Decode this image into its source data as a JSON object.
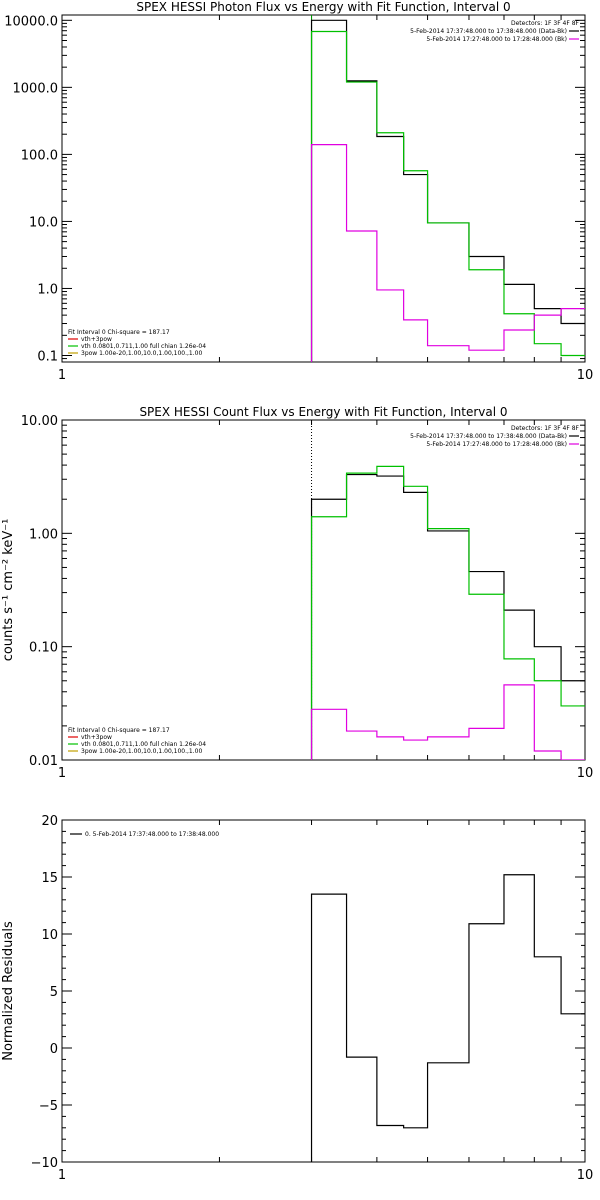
{
  "chart_data": [
    {
      "id": "photon",
      "type": "line",
      "title": "SPEX HESSI Photon Flux vs Energy with Fit Function, Interval 0",
      "ylabel": "",
      "xlabel": "",
      "xscale": "log",
      "yscale": "log",
      "xlim": [
        1,
        10
      ],
      "ylim": [
        0.08,
        12000
      ],
      "x_ticks": [
        {
          "v": 1,
          "label": "1"
        },
        {
          "v": 10,
          "label": "10"
        }
      ],
      "y_ticks": [
        {
          "v": 0.1,
          "label": "0.1"
        },
        {
          "v": 1,
          "label": "1.0"
        },
        {
          "v": 10,
          "label": "10.0"
        },
        {
          "v": 100,
          "label": "100.0"
        },
        {
          "v": 1000,
          "label": "1000.0"
        },
        {
          "v": 10000,
          "label": "10000.0"
        }
      ],
      "vline": {
        "x": 3.0,
        "color": "#00a000"
      },
      "edges": [
        3.0,
        3.5,
        4.0,
        4.5,
        5.0,
        6.0,
        7.0,
        8.0,
        9.0,
        10.0
      ],
      "series": [
        {
          "color": "#000000",
          "values": [
            10000,
            1250,
            185,
            50,
            9.5,
            3.0,
            1.15,
            0.5,
            0.3
          ]
        },
        {
          "color": "#00c000",
          "values": [
            6800,
            1200,
            210,
            57,
            9.5,
            1.9,
            0.42,
            0.15,
            0.1
          ]
        },
        {
          "color": "#e000e0",
          "values": [
            140,
            7.2,
            0.95,
            0.34,
            0.14,
            0.12,
            0.24,
            0.4,
            0.5
          ]
        }
      ],
      "legend_top": {
        "header": "Detectors: 1F 3F 4F 8F",
        "rows": [
          {
            "text": "5-Feb-2014 17:37:48.000 to 17:38:48.000 (Data-Bk)",
            "color": "#000000"
          },
          {
            "text": "5-Feb-2014 17:27:48.000 to 17:28:48.000 (Bk)",
            "color": "#e000e0"
          }
        ]
      },
      "legend_fit": {
        "header": "Fit Interval 0   Chi-square = 187.17",
        "rows": [
          {
            "text": "vth+3pow",
            "color": "#e00000"
          },
          {
            "text": "vth 0.0801,0.711,1.00  full chian 1.26e-04",
            "color": "#00c000"
          },
          {
            "text": "3pow 1.00e-20,1.00,10.0,1.00,100.,1.00",
            "color": "#c0a000"
          }
        ]
      }
    },
    {
      "id": "count",
      "type": "line",
      "title": "SPEX HESSI Count Flux vs Energy with Fit Function, Interval 0",
      "ylabel": "counts s⁻¹ cm⁻² keV⁻¹",
      "xlabel": "",
      "xscale": "log",
      "yscale": "log",
      "xlim": [
        1,
        10
      ],
      "ylim": [
        0.01,
        10
      ],
      "x_ticks": [
        {
          "v": 1,
          "label": "1"
        },
        {
          "v": 10,
          "label": "10"
        }
      ],
      "y_ticks": [
        {
          "v": 0.01,
          "label": "0.01"
        },
        {
          "v": 0.1,
          "label": "0.10"
        },
        {
          "v": 1,
          "label": "1.00"
        },
        {
          "v": 10,
          "label": "10.00"
        }
      ],
      "vline": {
        "x": 3.0,
        "color": "#000000",
        "dotted": true
      },
      "edges": [
        3.0,
        3.5,
        4.0,
        4.5,
        5.0,
        6.0,
        7.0,
        8.0,
        9.0,
        10.0
      ],
      "series": [
        {
          "color": "#000000",
          "values": [
            2.0,
            3.3,
            3.2,
            2.3,
            1.05,
            0.46,
            0.21,
            0.1,
            0.05
          ]
        },
        {
          "color": "#00c000",
          "values": [
            1.4,
            3.4,
            3.9,
            2.6,
            1.1,
            0.29,
            0.078,
            0.05,
            0.03
          ]
        },
        {
          "color": "#e000e0",
          "values": [
            0.028,
            0.018,
            0.016,
            0.015,
            0.016,
            0.019,
            0.046,
            0.012,
            0.01
          ]
        }
      ],
      "legend_top": {
        "header": "Detectors: 1F 3F 4F 8F",
        "rows": [
          {
            "text": "5-Feb-2014 17:37:48.000 to 17:38:48.000 (Data-Bk)",
            "color": "#000000"
          },
          {
            "text": "5-Feb-2014 17:27:48.000 to 17:28:48.000 (Bk)",
            "color": "#e000e0"
          }
        ]
      },
      "legend_fit": {
        "header": "Fit Interval 0   Chi-square = 187.17",
        "rows": [
          {
            "text": "vth+3pow",
            "color": "#e00000"
          },
          {
            "text": "vth 0.0801,0.711,1.00  full chian 1.26e-04",
            "color": "#00c000"
          },
          {
            "text": "3pow 1.00e-20,1.00,10.0,1.00,100.,1.00",
            "color": "#c0a000"
          }
        ]
      }
    },
    {
      "id": "resid",
      "type": "line",
      "title": "",
      "ylabel": "Normalized Residuals",
      "xlabel": "",
      "xscale": "log",
      "yscale": "linear",
      "xlim": [
        1,
        10
      ],
      "ylim": [
        -10,
        20
      ],
      "x_ticks": [
        {
          "v": 1,
          "label": "1"
        },
        {
          "v": 10,
          "label": "10"
        }
      ],
      "y_ticks": [
        {
          "v": -10,
          "label": "−10"
        },
        {
          "v": -5,
          "label": "−5"
        },
        {
          "v": 0,
          "label": "0"
        },
        {
          "v": 5,
          "label": "5"
        },
        {
          "v": 10,
          "label": "10"
        },
        {
          "v": 15,
          "label": "15"
        },
        {
          "v": 20,
          "label": "20"
        }
      ],
      "edges": [
        3.0,
        3.5,
        4.0,
        4.5,
        5.0,
        6.0,
        7.0,
        8.0,
        9.0,
        10.0
      ],
      "drop_to": -10,
      "series": [
        {
          "color": "#000000",
          "values": [
            13.5,
            -0.8,
            -6.8,
            -7.0,
            -1.3,
            10.9,
            15.2,
            8.0,
            3.0
          ]
        }
      ],
      "legend_top": {
        "header": "",
        "rows": [
          {
            "text": "0.  5-Feb-2014 17:37:48.000 to 17:38:48.000",
            "color": "#000000"
          }
        ]
      }
    }
  ]
}
